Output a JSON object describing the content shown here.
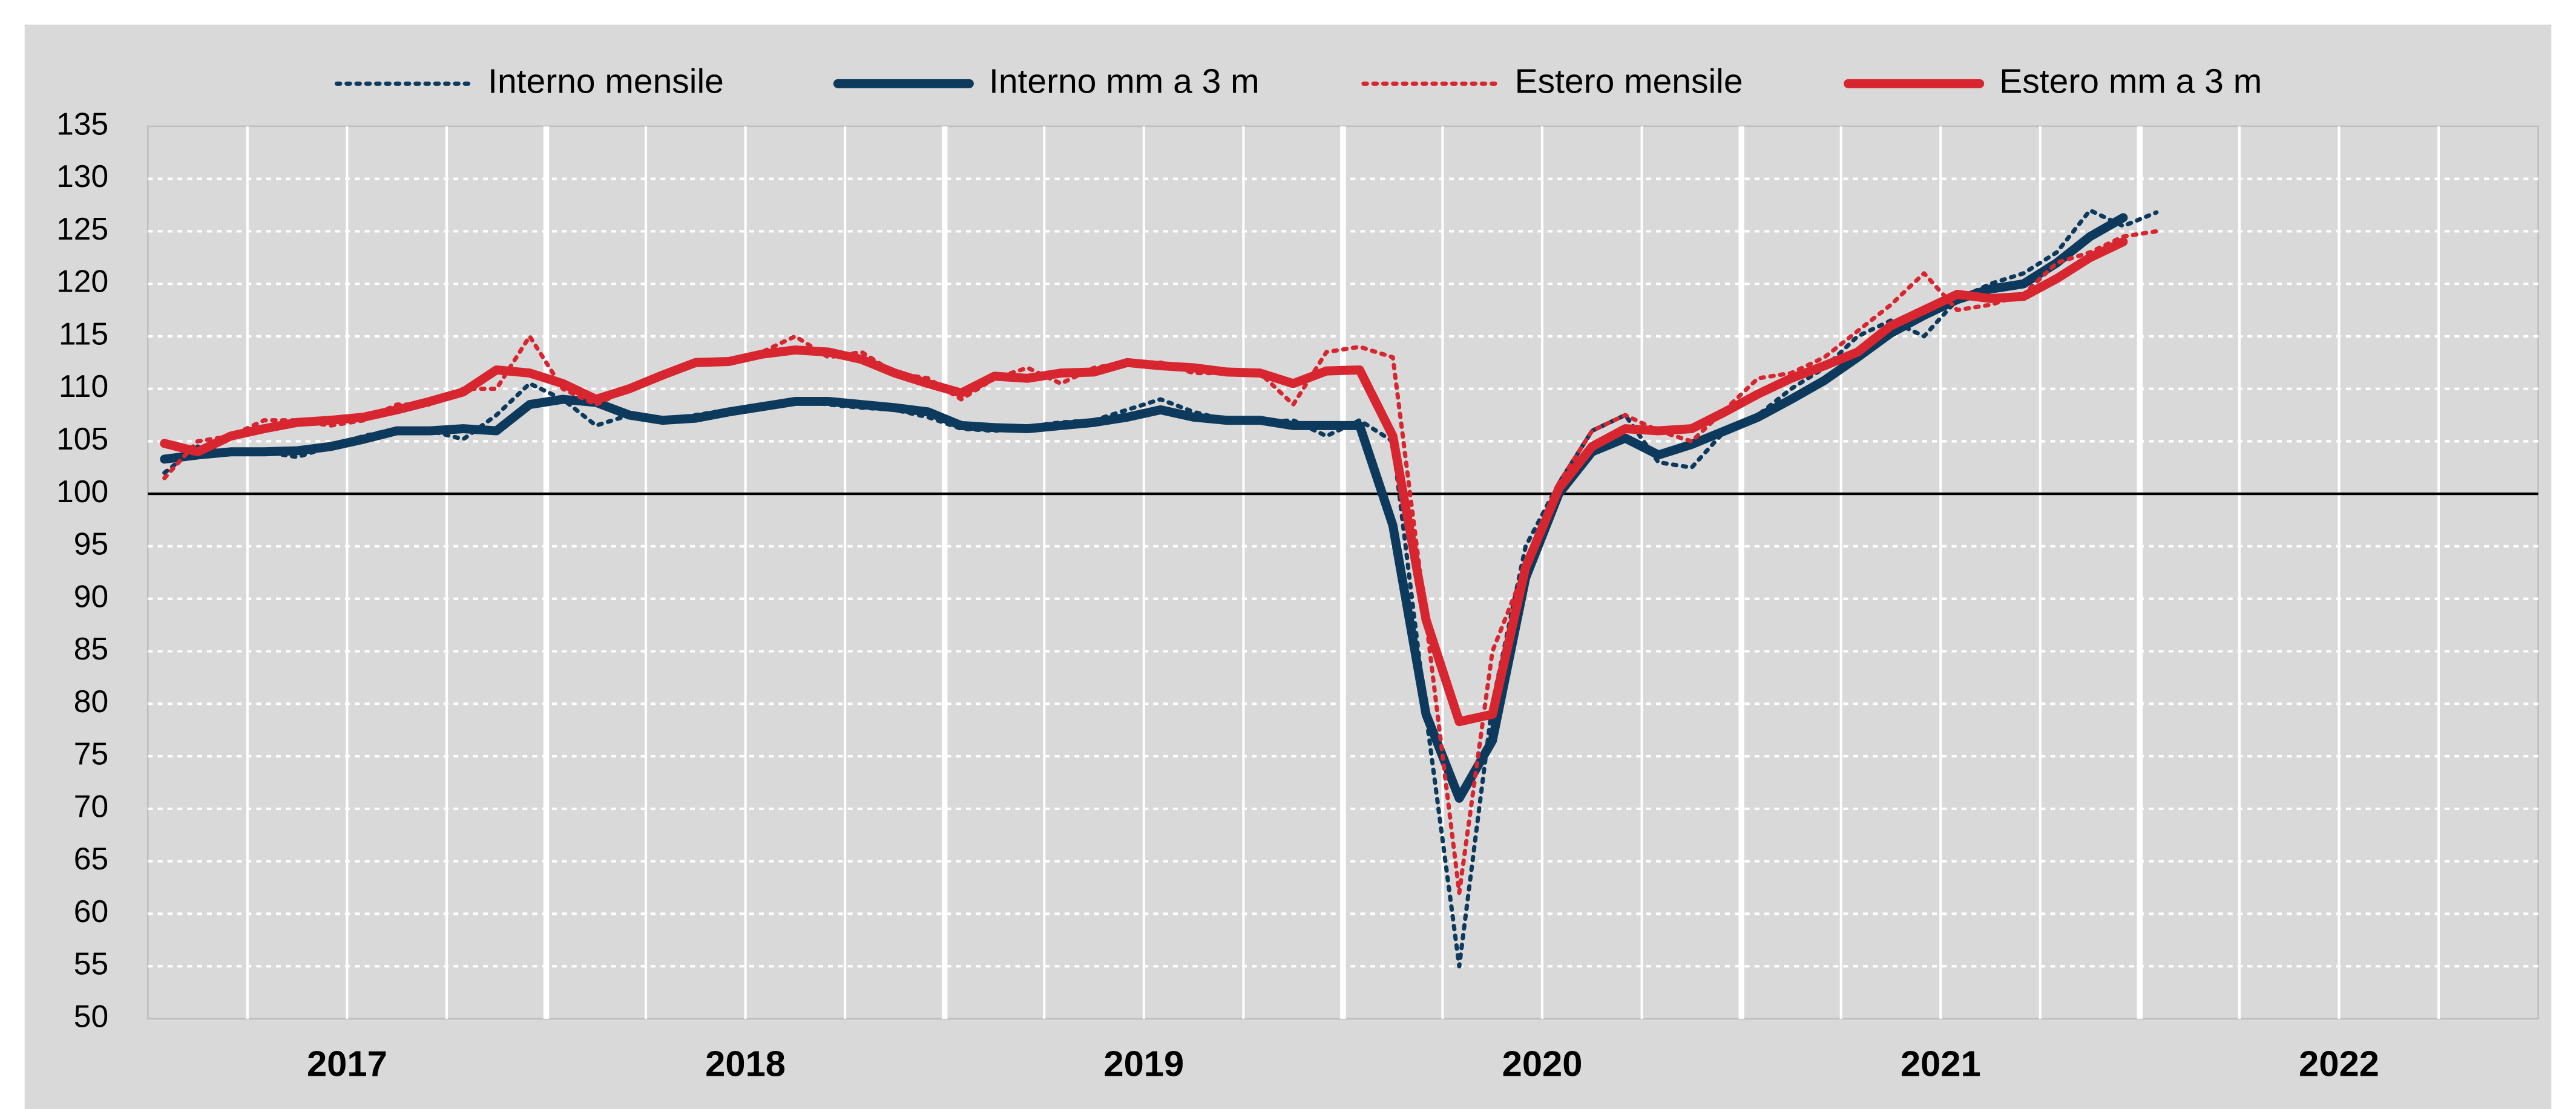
{
  "chart_data": {
    "type": "line",
    "categories": [
      null,
      null,
      null,
      null,
      null,
      null,
      "2017",
      null,
      null,
      null,
      null,
      null,
      null,
      null,
      null,
      null,
      null,
      null,
      "2018",
      null,
      null,
      null,
      null,
      null,
      null,
      null,
      null,
      null,
      null,
      null,
      "2019",
      null,
      null,
      null,
      null,
      null,
      null,
      null,
      null,
      null,
      null,
      null,
      "2020",
      null,
      null,
      null,
      null,
      null,
      null,
      null,
      null,
      null,
      null,
      null,
      "2021",
      null,
      null,
      null,
      null,
      null,
      null,
      null,
      null,
      null,
      null,
      null,
      "2022",
      null,
      null,
      null,
      null,
      null
    ],
    "series": [
      {
        "name": "Interno mensile",
        "color": "#0d3a5c",
        "style": "dotted",
        "values": [
          102,
          104.5,
          103.8,
          104,
          103.5,
          104.5,
          105.5,
          106.2,
          106,
          105.2,
          107.5,
          110.5,
          109,
          106.5,
          107.5,
          107,
          107.5,
          108,
          108.5,
          109,
          108.5,
          108.2,
          108,
          107.3,
          106.2,
          106,
          106.4,
          106.8,
          107,
          108,
          109,
          107.8,
          107,
          106.8,
          107,
          105.5,
          107,
          105,
          79,
          55,
          80,
          95,
          101,
          106,
          107.5,
          103,
          102.5,
          106,
          107.5,
          110,
          112,
          115,
          116.5,
          115,
          118.5,
          120,
          121,
          123,
          127,
          125.5,
          126.8,
          null,
          null,
          null,
          null,
          null,
          null,
          null,
          null,
          null,
          null,
          null
        ]
      },
      {
        "name": "Interno mm a 3 m",
        "color": "#0d3a5c",
        "style": "solid",
        "values": [
          103.3,
          103.7,
          104,
          104,
          104.1,
          104.5,
          105.2,
          106,
          106,
          106.2,
          106,
          108.5,
          109,
          108.7,
          107.5,
          107,
          107.2,
          107.8,
          108.3,
          108.8,
          108.8,
          108.5,
          108.2,
          107.8,
          106.5,
          106.3,
          106.2,
          106.5,
          106.8,
          107.3,
          108,
          107.3,
          107,
          107,
          106.5,
          106.5,
          106.5,
          97,
          79,
          71,
          76.5,
          92,
          100,
          104,
          105.3,
          103.7,
          104.7,
          106,
          107.3,
          109,
          110.8,
          113,
          115.3,
          117,
          118.5,
          119.5,
          120,
          122,
          124.5,
          126.3,
          null,
          null,
          null,
          null,
          null,
          null,
          null,
          null,
          null,
          null,
          null,
          null
        ]
      },
      {
        "name": "Estero mensile",
        "color": "#d7262f",
        "style": "dotted",
        "values": [
          101.5,
          105,
          105.5,
          107,
          107,
          106.5,
          107,
          108.5,
          108.5,
          110,
          110,
          115,
          110,
          108.5,
          110,
          111.5,
          112.5,
          112.5,
          113.5,
          115,
          113,
          113.5,
          111.5,
          111,
          109,
          111,
          112,
          110.5,
          112,
          112.5,
          112.5,
          111.5,
          111.5,
          111.5,
          108.5,
          113.5,
          114,
          113,
          88,
          62,
          85,
          93,
          101,
          106,
          107.5,
          106,
          105,
          108,
          111,
          111.5,
          113,
          115.5,
          118,
          121,
          117.5,
          118,
          119,
          122,
          123,
          124.5,
          125,
          null,
          null,
          null,
          null,
          null,
          null,
          null,
          null,
          null,
          null,
          null
        ]
      },
      {
        "name": "Estero mm a 3 m",
        "color": "#d7262f",
        "style": "solid",
        "values": [
          104.8,
          104,
          105.5,
          106.2,
          106.8,
          107,
          107.3,
          108,
          108.8,
          109.7,
          111.8,
          111.5,
          110.5,
          109,
          110,
          111.3,
          112.5,
          112.6,
          113.3,
          113.7,
          113.5,
          112.8,
          111.5,
          110.5,
          109.6,
          111.2,
          111,
          111.5,
          111.6,
          112.5,
          112.2,
          112,
          111.6,
          111.5,
          110.5,
          111.7,
          111.8,
          105.5,
          88,
          78.3,
          79,
          93,
          100.5,
          104.5,
          106.2,
          106,
          106.2,
          107.8,
          109.5,
          111,
          112.2,
          113.5,
          116,
          117.5,
          119,
          118.6,
          118.8,
          120.5,
          122.5,
          124,
          null,
          null,
          null,
          null,
          null,
          null,
          null,
          null,
          null,
          null,
          null,
          null
        ]
      }
    ],
    "ylim": [
      50,
      135
    ],
    "yticks": [
      50,
      55,
      60,
      65,
      70,
      75,
      80,
      85,
      90,
      95,
      100,
      105,
      110,
      115,
      120,
      125,
      130,
      135
    ],
    "reference_line": 100,
    "grid": true,
    "legend": "top"
  }
}
